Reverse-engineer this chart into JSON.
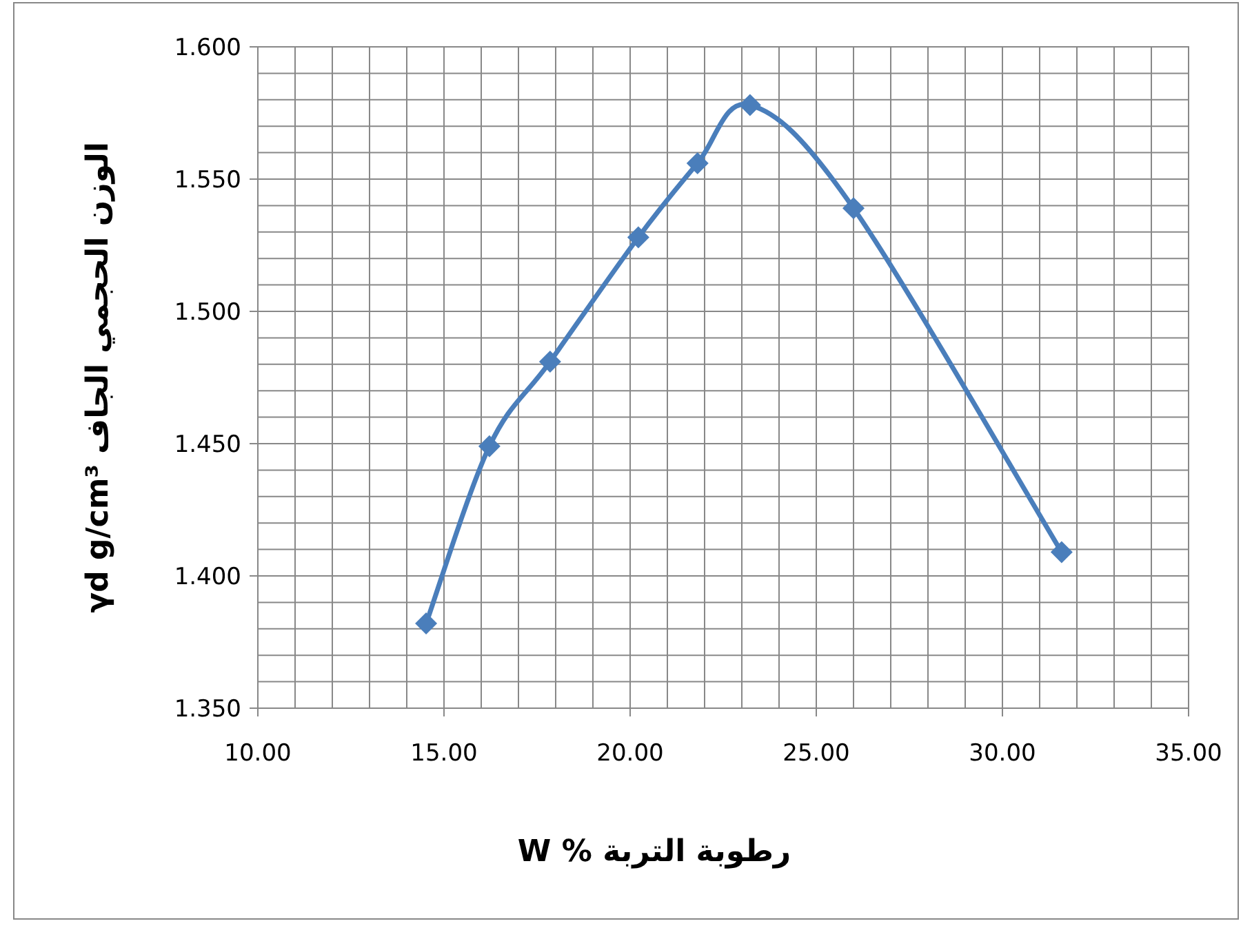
{
  "chart_data": {
    "type": "line",
    "xlabel": "W  %   رطوبة التربة",
    "ylabel": "γd  g/cm³       الوزن الحجمي الجاف",
    "series": [
      {
        "color": "#4a7ebb",
        "x": [
          14.52,
          16.22,
          17.85,
          20.22,
          21.81,
          23.22,
          26.0,
          31.59
        ],
        "values": [
          1.382,
          1.449,
          1.481,
          1.528,
          1.556,
          1.578,
          1.539,
          1.409
        ]
      }
    ],
    "marker": "diamond",
    "line_style": "solid",
    "grid": true,
    "xlim": [
      10,
      35
    ],
    "ylim": [
      1.35,
      1.6
    ],
    "xticks": [
      {
        "value": 10,
        "label": "10.00"
      },
      {
        "value": 11,
        "label": null
      },
      {
        "value": 12,
        "label": null
      },
      {
        "value": 13,
        "label": null
      },
      {
        "value": 14,
        "label": null
      },
      {
        "value": 15,
        "label": "15.00"
      },
      {
        "value": 16,
        "label": null
      },
      {
        "value": 17,
        "label": null
      },
      {
        "value": 18,
        "label": null
      },
      {
        "value": 19,
        "label": null
      },
      {
        "value": 20,
        "label": "20.00"
      },
      {
        "value": 21,
        "label": null
      },
      {
        "value": 22,
        "label": null
      },
      {
        "value": 23,
        "label": null
      },
      {
        "value": 24,
        "label": null
      },
      {
        "value": 25,
        "label": "25.00"
      },
      {
        "value": 26,
        "label": null
      },
      {
        "value": 27,
        "label": null
      },
      {
        "value": 28,
        "label": null
      },
      {
        "value": 29,
        "label": null
      },
      {
        "value": 30,
        "label": "30.00"
      },
      {
        "value": 31,
        "label": null
      },
      {
        "value": 32,
        "label": null
      },
      {
        "value": 33,
        "label": null
      },
      {
        "value": 34,
        "label": null
      },
      {
        "value": 35,
        "label": "35.00"
      }
    ],
    "yticks": [
      {
        "value": 1.35,
        "label": "1.350"
      },
      {
        "value": 1.36,
        "label": null
      },
      {
        "value": 1.37,
        "label": null
      },
      {
        "value": 1.38,
        "label": null
      },
      {
        "value": 1.39,
        "label": null
      },
      {
        "value": 1.4,
        "label": "1.400"
      },
      {
        "value": 1.41,
        "label": null
      },
      {
        "value": 1.42,
        "label": null
      },
      {
        "value": 1.43,
        "label": null
      },
      {
        "value": 1.44,
        "label": null
      },
      {
        "value": 1.45,
        "label": "1.450"
      },
      {
        "value": 1.46,
        "label": null
      },
      {
        "value": 1.47,
        "label": null
      },
      {
        "value": 1.48,
        "label": null
      },
      {
        "value": 1.49,
        "label": null
      },
      {
        "value": 1.5,
        "label": "1.500"
      },
      {
        "value": 1.51,
        "label": null
      },
      {
        "value": 1.52,
        "label": null
      },
      {
        "value": 1.53,
        "label": null
      },
      {
        "value": 1.54,
        "label": null
      },
      {
        "value": 1.55,
        "label": "1.550"
      },
      {
        "value": 1.56,
        "label": null
      },
      {
        "value": 1.57,
        "label": null
      },
      {
        "value": 1.58,
        "label": null
      },
      {
        "value": 1.59,
        "label": null
      },
      {
        "value": 1.6,
        "label": "1.600"
      }
    ]
  }
}
